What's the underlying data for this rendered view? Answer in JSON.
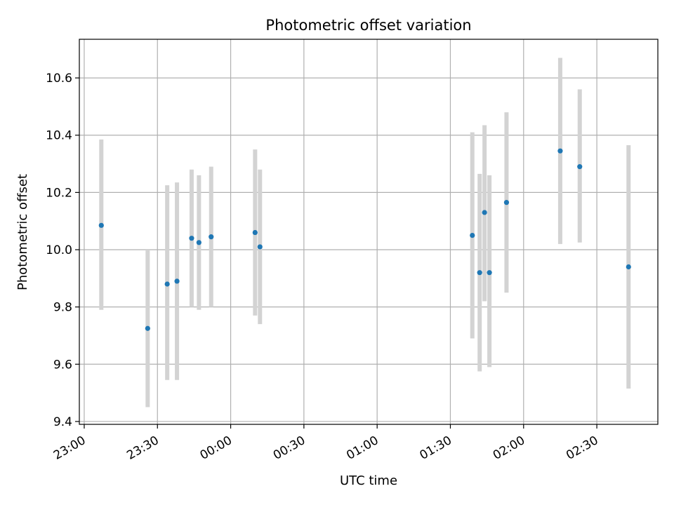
{
  "chart_data": {
    "type": "scatter",
    "title": "Photometric offset variation",
    "xlabel": "UTC time",
    "ylabel": "Photometric offset",
    "x_is_time": true,
    "x_ticks": [
      "23:00",
      "23:30",
      "00:00",
      "00:30",
      "01:00",
      "01:30",
      "02:00",
      "02:30"
    ],
    "x_tick_values": [
      "23:00",
      "23:30",
      "00:00",
      "00:30",
      "01:00",
      "01:30",
      "02:00",
      "02:30"
    ],
    "xlim": [
      "22:58",
      "02:55"
    ],
    "ylim": [
      9.39,
      10.735
    ],
    "y_ticks": [
      "9.4",
      "9.6",
      "9.8",
      "10.0",
      "10.2",
      "10.4",
      "10.6"
    ],
    "y_tick_values": [
      9.4,
      9.6,
      9.8,
      10.0,
      10.2,
      10.4,
      10.6
    ],
    "grid": true,
    "marker_color": "#1f77b4",
    "errorbar_color": "#d3d3d3",
    "points": [
      {
        "x": "23:07",
        "y": 10.085,
        "yerr_low": 9.79,
        "yerr_high": 10.385
      },
      {
        "x": "23:26",
        "y": 9.725,
        "yerr_low": 9.45,
        "yerr_high": 10.0
      },
      {
        "x": "23:34",
        "y": 9.88,
        "yerr_low": 9.545,
        "yerr_high": 10.225
      },
      {
        "x": "23:38",
        "y": 9.89,
        "yerr_low": 9.545,
        "yerr_high": 10.235
      },
      {
        "x": "23:44",
        "y": 10.04,
        "yerr_low": 9.8,
        "yerr_high": 10.28
      },
      {
        "x": "23:47",
        "y": 10.025,
        "yerr_low": 9.79,
        "yerr_high": 10.26
      },
      {
        "x": "23:52",
        "y": 10.045,
        "yerr_low": 9.8,
        "yerr_high": 10.29
      },
      {
        "x": "00:10",
        "y": 10.06,
        "yerr_low": 9.77,
        "yerr_high": 10.35
      },
      {
        "x": "00:12",
        "y": 10.01,
        "yerr_low": 9.74,
        "yerr_high": 10.28
      },
      {
        "x": "01:39",
        "y": 10.05,
        "yerr_low": 9.69,
        "yerr_high": 10.41
      },
      {
        "x": "01:42",
        "y": 9.92,
        "yerr_low": 9.575,
        "yerr_high": 10.265
      },
      {
        "x": "01:44",
        "y": 10.13,
        "yerr_low": 9.82,
        "yerr_high": 10.435
      },
      {
        "x": "01:46",
        "y": 9.92,
        "yerr_low": 9.59,
        "yerr_high": 10.26
      },
      {
        "x": "01:53",
        "y": 10.165,
        "yerr_low": 9.85,
        "yerr_high": 10.48
      },
      {
        "x": "02:15",
        "y": 10.345,
        "yerr_low": 10.02,
        "yerr_high": 10.67
      },
      {
        "x": "02:23",
        "y": 10.29,
        "yerr_low": 10.025,
        "yerr_high": 10.56
      },
      {
        "x": "02:43",
        "y": 9.94,
        "yerr_low": 9.515,
        "yerr_high": 10.365
      }
    ]
  }
}
